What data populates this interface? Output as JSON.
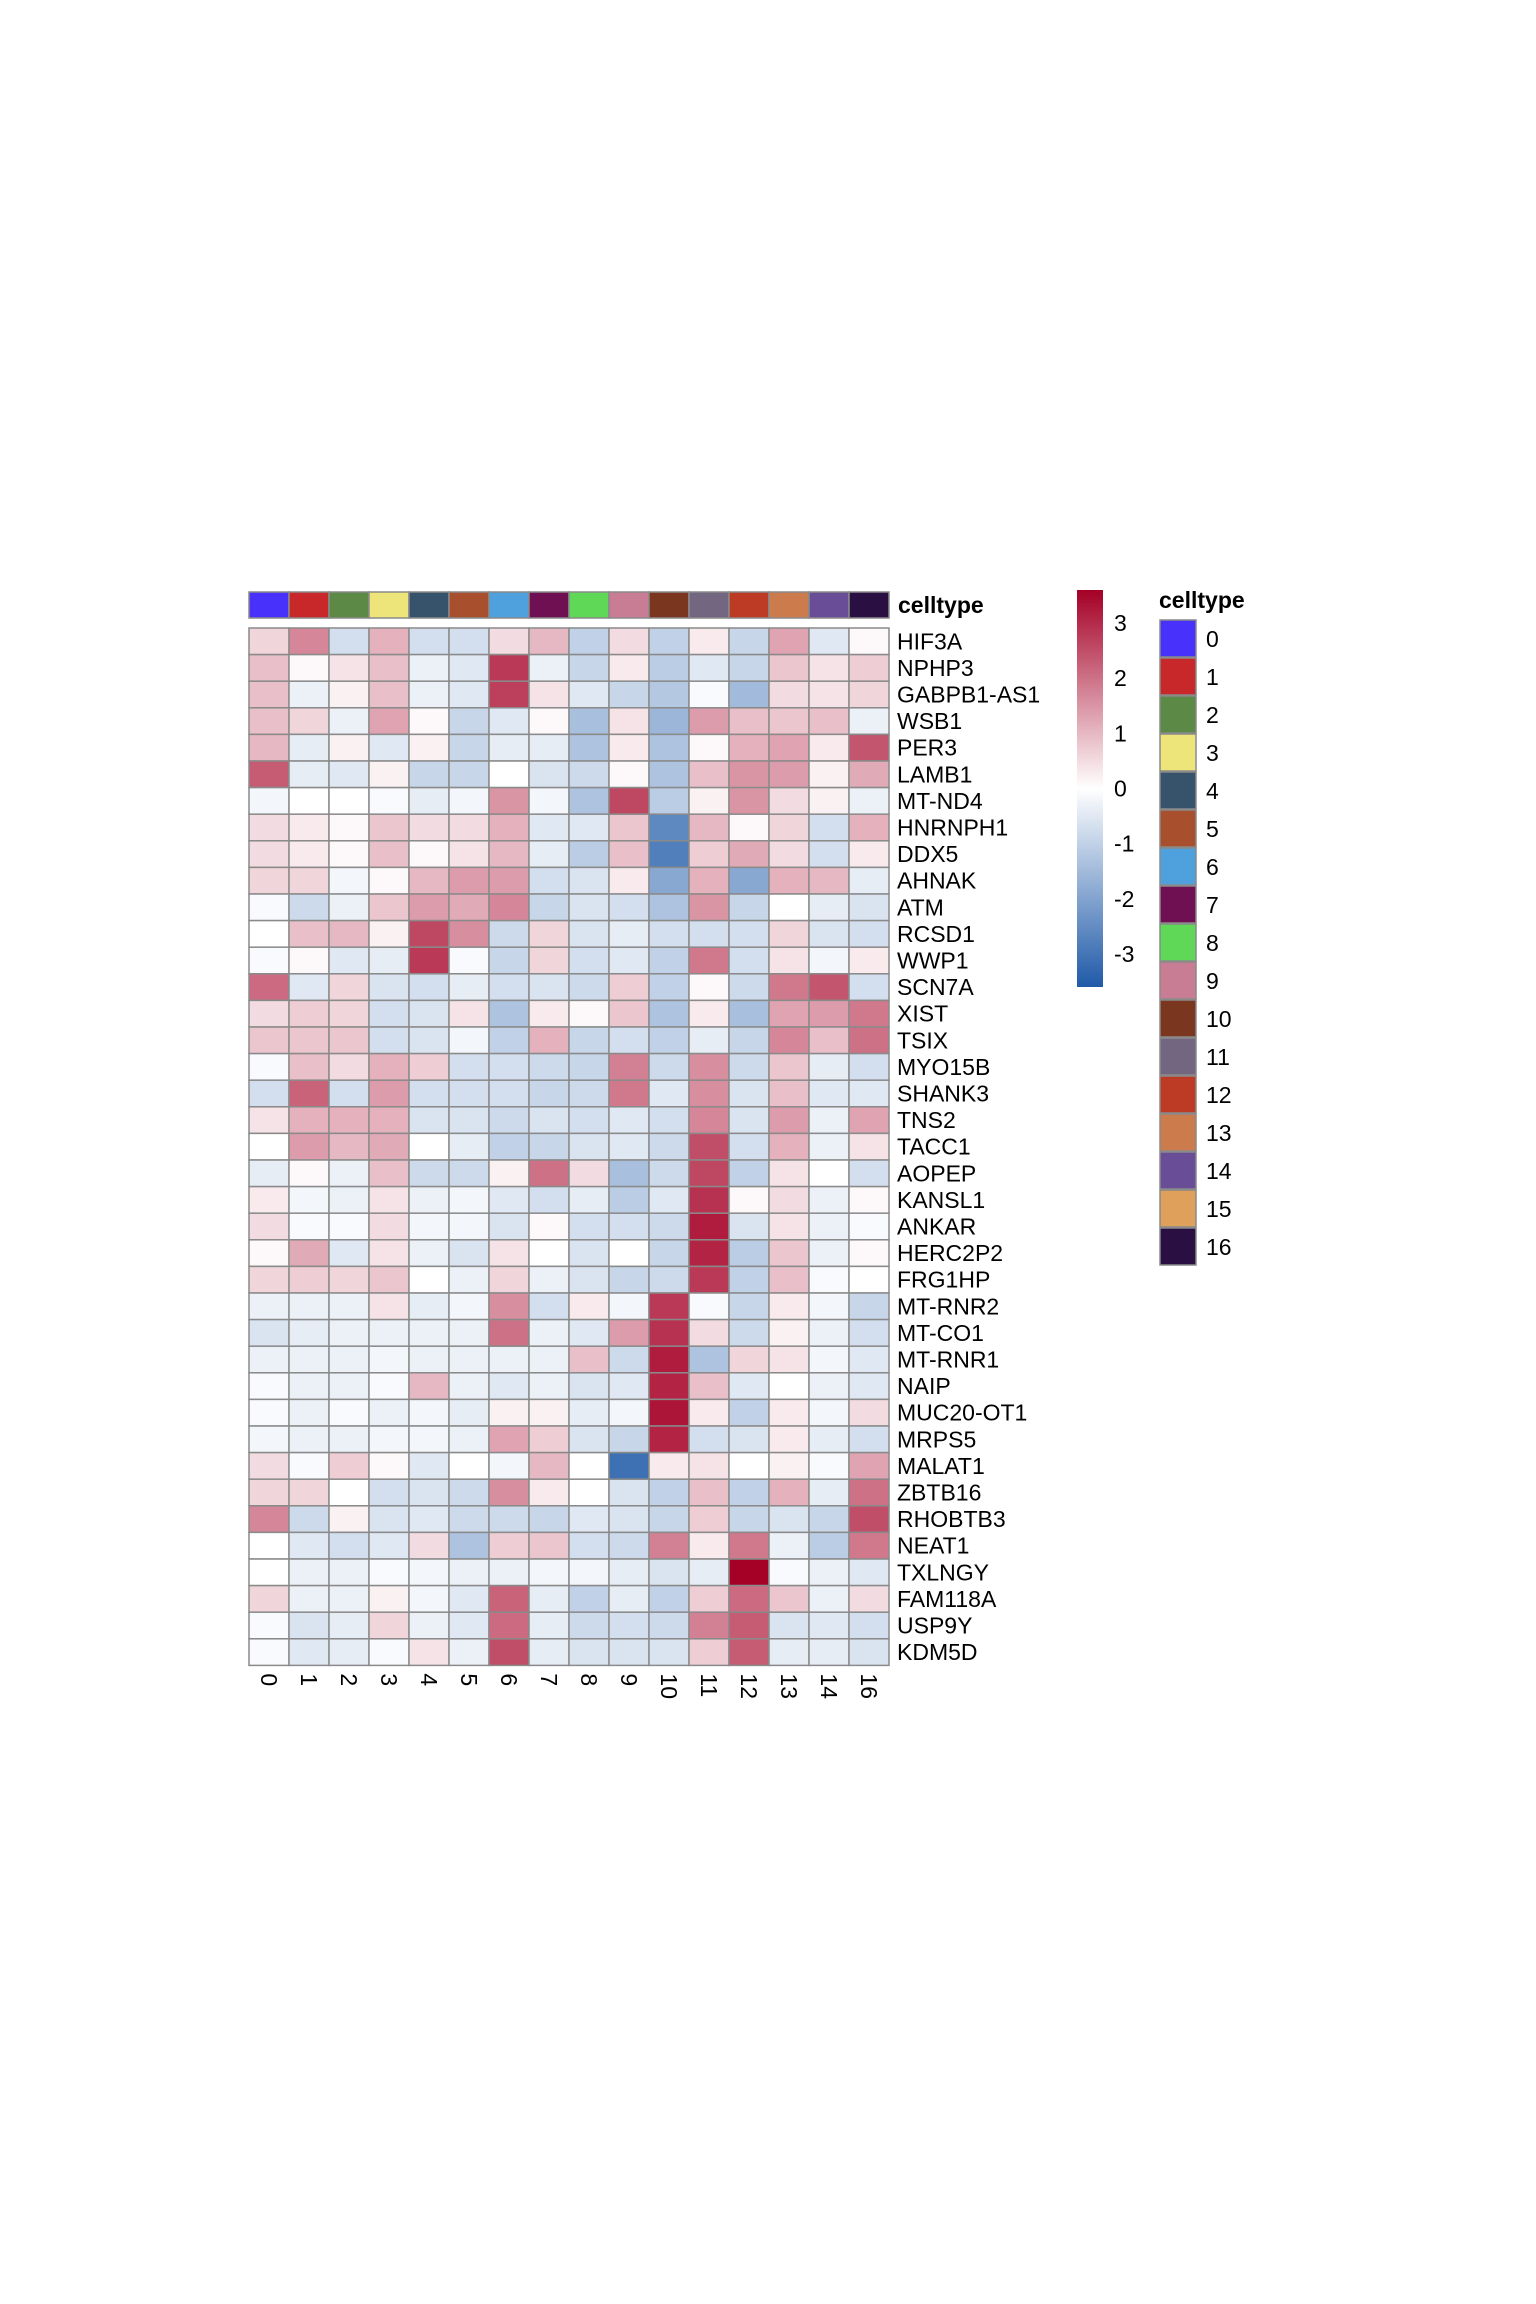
{
  "chart_data": {
    "type": "heatmap",
    "x": [
      "0",
      "1",
      "2",
      "3",
      "4",
      "5",
      "6",
      "7",
      "8",
      "9",
      "10",
      "11",
      "12",
      "13",
      "14",
      "16"
    ],
    "y": [
      "HIF3A",
      "NPHP3",
      "GABPB1-AS1",
      "WSB1",
      "PER3",
      "LAMB1",
      "MT-ND4",
      "HNRNPH1",
      "DDX5",
      "AHNAK",
      "ATM",
      "RCSD1",
      "WWP1",
      "SCN7A",
      "XIST",
      "TSIX",
      "MYO15B",
      "SHANK3",
      "TNS2",
      "TACC1",
      "AOPEP",
      "KANSL1",
      "ANKAR",
      "HERC2P2",
      "FRG1HP",
      "MT-RNR2",
      "MT-CO1",
      "MT-RNR1",
      "NAIP",
      "MUC20-OT1",
      "MRPS5",
      "MALAT1",
      "ZBTB16",
      "RHOBTB3",
      "NEAT1",
      "TXLNGY",
      "FAM118A",
      "USP9Y",
      "KDM5D"
    ],
    "values": [
      [
        0.6,
        1.7,
        -0.7,
        1.1,
        -0.7,
        -0.7,
        0.5,
        1.0,
        -1.0,
        0.5,
        -1.0,
        0.3,
        -0.9,
        1.3,
        -0.5,
        0.1
      ],
      [
        0.9,
        0.1,
        0.4,
        0.9,
        -0.3,
        -0.5,
        2.8,
        -0.3,
        -0.9,
        0.3,
        -1.1,
        -0.5,
        -0.9,
        0.8,
        0.4,
        0.7
      ],
      [
        0.9,
        -0.3,
        0.2,
        0.9,
        -0.3,
        -0.5,
        2.7,
        0.4,
        -0.5,
        -0.9,
        -1.2,
        -0.1,
        -1.5,
        0.5,
        0.4,
        0.6
      ],
      [
        0.9,
        0.6,
        -0.3,
        1.3,
        0.1,
        -0.9,
        -0.5,
        0.1,
        -1.4,
        0.4,
        -1.6,
        1.4,
        0.9,
        0.8,
        0.9,
        -0.3
      ],
      [
        1.0,
        -0.4,
        0.2,
        -0.5,
        0.2,
        -0.9,
        -0.4,
        -0.4,
        -1.3,
        0.3,
        -1.3,
        0.1,
        1.1,
        1.3,
        0.3,
        2.4
      ],
      [
        2.3,
        -0.4,
        -0.5,
        0.2,
        -0.9,
        -0.9,
        0.0,
        -0.6,
        -0.8,
        0.1,
        -1.3,
        0.9,
        1.5,
        1.4,
        0.2,
        1.2
      ],
      [
        -0.2,
        0.0,
        0.0,
        -0.1,
        -0.4,
        -0.2,
        1.5,
        -0.2,
        -1.3,
        2.6,
        -1.1,
        0.2,
        1.5,
        0.5,
        0.2,
        -0.3
      ],
      [
        0.5,
        0.3,
        0.1,
        0.8,
        0.5,
        0.5,
        1.1,
        -0.5,
        -0.5,
        0.8,
        -2.6,
        1.0,
        0.1,
        0.6,
        -0.7,
        1.1
      ],
      [
        0.5,
        0.3,
        0.1,
        0.9,
        0.1,
        0.4,
        1.0,
        -0.4,
        -1.1,
        0.9,
        -2.8,
        0.7,
        1.2,
        0.5,
        -0.7,
        0.3
      ],
      [
        0.6,
        0.6,
        -0.2,
        0.1,
        1.0,
        1.4,
        1.4,
        -0.7,
        -0.6,
        0.3,
        -1.9,
        1.1,
        -1.9,
        1.1,
        1.0,
        -0.4
      ],
      [
        -0.1,
        -0.8,
        -0.3,
        0.8,
        1.4,
        1.2,
        1.7,
        -0.9,
        -0.6,
        -0.7,
        -1.3,
        1.5,
        -0.9,
        0.0,
        -0.4,
        -0.6
      ],
      [
        0.0,
        0.9,
        1.0,
        0.2,
        2.6,
        1.6,
        -0.8,
        0.6,
        -0.6,
        -0.4,
        -0.7,
        -0.7,
        -0.7,
        0.6,
        -0.6,
        -0.7
      ],
      [
        -0.1,
        0.1,
        -0.5,
        -0.4,
        2.8,
        -0.1,
        -0.9,
        0.6,
        -0.7,
        -0.5,
        -1.0,
        1.9,
        -0.7,
        0.4,
        -0.2,
        0.3
      ],
      [
        2.1,
        -0.5,
        0.6,
        -0.6,
        -0.7,
        -0.4,
        -0.7,
        -0.6,
        -0.8,
        0.7,
        -1.0,
        0.1,
        -0.8,
        1.9,
        2.4,
        -0.7
      ],
      [
        0.5,
        0.7,
        0.6,
        -0.7,
        -0.6,
        0.4,
        -1.3,
        0.3,
        0.1,
        0.8,
        -1.3,
        0.3,
        -1.4,
        1.3,
        1.4,
        1.9
      ],
      [
        0.8,
        0.8,
        0.8,
        -0.7,
        -0.6,
        -0.2,
        -1.0,
        1.1,
        -0.9,
        -0.7,
        -1.0,
        -0.4,
        -0.9,
        1.7,
        0.9,
        2.0
      ],
      [
        -0.1,
        0.9,
        0.5,
        1.1,
        0.7,
        -0.7,
        -0.7,
        -0.8,
        -0.9,
        1.8,
        -0.8,
        1.6,
        -0.8,
        0.8,
        -0.4,
        -0.7
      ],
      [
        -0.7,
        2.2,
        -0.7,
        1.4,
        -0.7,
        -0.7,
        -0.7,
        -0.9,
        -0.8,
        1.9,
        -0.5,
        1.6,
        -0.6,
        0.9,
        -0.5,
        -0.5
      ],
      [
        0.4,
        1.1,
        1.1,
        1.1,
        -0.6,
        -0.6,
        -0.8,
        -0.6,
        -0.7,
        -0.5,
        -0.7,
        1.7,
        -0.6,
        1.4,
        -0.3,
        1.3
      ],
      [
        0.0,
        1.4,
        1.0,
        1.2,
        0.0,
        -0.4,
        -1.0,
        -0.9,
        -0.6,
        -0.5,
        -0.8,
        2.5,
        -0.7,
        1.1,
        -0.3,
        0.4
      ],
      [
        -0.4,
        0.1,
        -0.3,
        0.9,
        -0.8,
        -0.8,
        0.2,
        2.0,
        0.5,
        -1.4,
        -0.8,
        2.6,
        -1.0,
        0.4,
        0.0,
        -0.7
      ],
      [
        0.3,
        -0.2,
        -0.3,
        0.4,
        -0.3,
        -0.2,
        -0.5,
        -0.7,
        -0.4,
        -1.1,
        -0.5,
        2.9,
        0.1,
        0.5,
        -0.3,
        0.1
      ],
      [
        0.5,
        -0.1,
        -0.1,
        0.5,
        -0.2,
        -0.2,
        -0.6,
        0.1,
        -0.7,
        -0.7,
        -0.8,
        3.2,
        -0.6,
        0.4,
        -0.3,
        -0.1
      ],
      [
        0.1,
        1.2,
        -0.5,
        0.4,
        -0.3,
        -0.6,
        0.4,
        0.0,
        -0.6,
        0.0,
        -0.9,
        3.1,
        -1.1,
        0.8,
        -0.3,
        0.1
      ],
      [
        0.6,
        0.7,
        0.6,
        0.8,
        0.0,
        -0.3,
        0.6,
        -0.3,
        -0.6,
        -0.9,
        -0.8,
        2.8,
        -1.0,
        0.9,
        -0.1,
        0.0
      ],
      [
        -0.3,
        -0.3,
        -0.3,
        0.4,
        -0.4,
        -0.2,
        1.6,
        -0.7,
        0.3,
        -0.2,
        2.8,
        -0.1,
        -0.9,
        0.3,
        -0.2,
        -0.9
      ],
      [
        -0.6,
        -0.4,
        -0.3,
        -0.3,
        -0.3,
        -0.3,
        2.0,
        -0.3,
        -0.5,
        1.4,
        2.9,
        0.5,
        -0.8,
        0.2,
        -0.3,
        -0.7
      ],
      [
        -0.3,
        -0.3,
        -0.3,
        -0.2,
        -0.3,
        -0.3,
        -0.3,
        -0.3,
        0.9,
        -0.8,
        3.2,
        -1.3,
        0.6,
        0.4,
        -0.2,
        -0.5
      ],
      [
        -0.1,
        -0.3,
        -0.3,
        -0.1,
        1.0,
        -0.3,
        -0.5,
        -0.3,
        -0.6,
        -0.5,
        3.1,
        0.9,
        -0.5,
        0.0,
        -0.3,
        -0.5
      ],
      [
        -0.1,
        -0.3,
        -0.1,
        -0.3,
        -0.2,
        -0.4,
        0.2,
        0.2,
        -0.4,
        -0.2,
        3.3,
        0.3,
        -1.0,
        0.3,
        -0.2,
        0.5
      ],
      [
        -0.2,
        -0.3,
        -0.3,
        -0.2,
        -0.2,
        -0.3,
        1.3,
        0.7,
        -0.6,
        -0.9,
        3.1,
        -0.7,
        -0.6,
        0.3,
        -0.4,
        -0.7
      ],
      [
        0.5,
        -0.1,
        0.7,
        0.1,
        -0.5,
        0.0,
        -0.2,
        1.0,
        0.0,
        -3.1,
        0.3,
        0.4,
        0.0,
        0.2,
        -0.1,
        1.3
      ],
      [
        0.6,
        0.6,
        0.0,
        -0.7,
        -0.6,
        -0.8,
        1.6,
        0.3,
        0.0,
        -0.6,
        -1.0,
        0.9,
        -1.0,
        1.1,
        -0.4,
        2.0
      ],
      [
        1.7,
        -0.8,
        0.2,
        -0.6,
        -0.5,
        -0.8,
        -0.8,
        -0.9,
        -0.5,
        -0.6,
        -0.9,
        0.7,
        -0.9,
        -0.6,
        -0.9,
        2.5
      ],
      [
        0.0,
        -0.5,
        -0.7,
        -0.5,
        0.5,
        -1.3,
        0.7,
        0.8,
        -0.7,
        -0.8,
        1.8,
        0.3,
        1.9,
        -0.3,
        -1.1,
        1.9
      ],
      [
        0.0,
        -0.3,
        -0.3,
        -0.1,
        -0.2,
        -0.3,
        -0.3,
        -0.2,
        -0.2,
        -0.4,
        -0.6,
        -0.4,
        3.6,
        -0.1,
        -0.3,
        -0.5
      ],
      [
        0.6,
        -0.3,
        -0.3,
        0.2,
        -0.2,
        -0.5,
        2.2,
        -0.4,
        -1.0,
        -0.4,
        -1.0,
        0.7,
        2.1,
        0.8,
        -0.3,
        0.5
      ],
      [
        -0.1,
        -0.6,
        -0.4,
        0.6,
        -0.3,
        -0.5,
        2.1,
        -0.4,
        -0.8,
        -0.7,
        -0.8,
        1.8,
        2.3,
        -0.6,
        -0.5,
        -0.7
      ],
      [
        -0.1,
        -0.5,
        -0.4,
        -0.1,
        0.4,
        -0.3,
        2.5,
        -0.4,
        -0.6,
        -0.6,
        -0.6,
        0.7,
        2.3,
        -0.4,
        -0.4,
        -0.6
      ]
    ],
    "colorbar": {
      "min": -3.6,
      "max": 3.6,
      "ticks": [
        3,
        2,
        1,
        0,
        -1,
        -2,
        -3
      ],
      "colors": [
        "#1f5aa8",
        "#ffffff",
        "#a50026"
      ]
    },
    "annotation": {
      "title": "celltype",
      "categories": [
        "0",
        "1",
        "2",
        "3",
        "4",
        "5",
        "6",
        "7",
        "8",
        "9",
        "10",
        "11",
        "12",
        "13",
        "14",
        "15",
        "16"
      ],
      "colors": [
        "#4731fb",
        "#c8282a",
        "#5c8a46",
        "#ede57a",
        "#37536c",
        "#a84f2e",
        "#4ea1dc",
        "#6e1051",
        "#5fd858",
        "#c97d95",
        "#7b3620",
        "#736680",
        "#bd3b24",
        "#cb7b4c",
        "#6a4d97",
        "#dea05a",
        "#2a1042"
      ]
    }
  }
}
